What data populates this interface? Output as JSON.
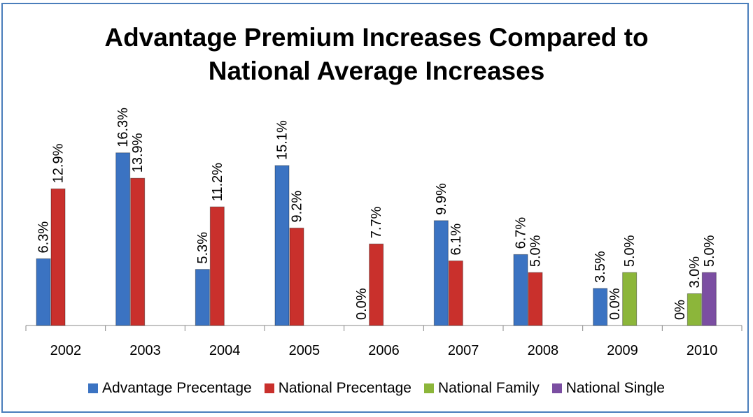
{
  "chart_data": {
    "type": "bar",
    "title": "Advantage Premium Increases Compared to National Average Increases",
    "categories": [
      "2002",
      "2003",
      "2004",
      "2005",
      "2006",
      "2007",
      "2008",
      "2009",
      "2010"
    ],
    "series": [
      {
        "name": "Advantage Precentage",
        "color": "#3b73c2",
        "values": [
          6.3,
          16.3,
          5.3,
          15.1,
          0.0,
          9.9,
          6.7,
          3.5,
          0
        ],
        "value_labels": [
          "6.3%",
          "16.3%",
          "5.3%",
          "15.1%",
          "0.0%",
          "9.9%",
          "6.7%",
          "3.5%",
          "0%"
        ]
      },
      {
        "name": "National Precentage",
        "color": "#c9302c",
        "values": [
          12.9,
          13.9,
          11.2,
          9.2,
          7.7,
          6.1,
          5.0,
          0.0,
          null
        ],
        "value_labels": [
          "12.9%",
          "13.9%",
          "11.2%",
          "9.2%",
          "7.7%",
          "6.1%",
          "5.0%",
          "0.0%",
          null
        ]
      },
      {
        "name": "National Family",
        "color": "#8cb63a",
        "values": [
          null,
          null,
          null,
          null,
          null,
          null,
          null,
          5.0,
          3.0
        ],
        "value_labels": [
          null,
          null,
          null,
          null,
          null,
          null,
          null,
          "5.0%",
          "3.0%"
        ]
      },
      {
        "name": "National Single",
        "color": "#7b4ea2",
        "values": [
          null,
          null,
          null,
          null,
          null,
          null,
          null,
          null,
          5.0
        ],
        "value_labels": [
          null,
          null,
          null,
          null,
          null,
          null,
          null,
          null,
          "5.0%"
        ]
      }
    ],
    "ylim": [
      0,
      18
    ],
    "legend": "bottom"
  }
}
